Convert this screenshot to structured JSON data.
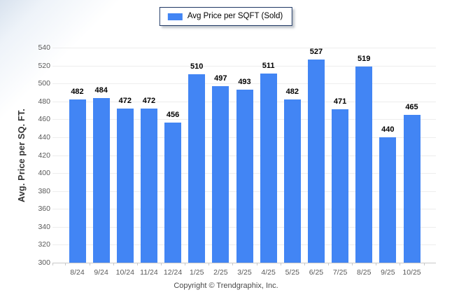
{
  "legend": {
    "label": "Avg Price per SQFT (Sold)"
  },
  "footer": {
    "copyright": "Copyright © Trendgraphix, Inc."
  },
  "colors": {
    "bar": "#4285F4",
    "legend_border": "#1F3864",
    "grid": "#ededed",
    "axis": "#c9c9c9",
    "tick_text": "#595959",
    "value_text": "#000000",
    "ylabel_text": "#333333",
    "footer_text": "#4a4a4a",
    "bg_corner": "#d8e2ee"
  },
  "chart_data": {
    "type": "bar",
    "title": "",
    "xlabel": "",
    "ylabel": "Avg. Price per SQ. FT.",
    "series": [
      {
        "name": "Avg Price per SQFT (Sold)",
        "values": [
          482,
          484,
          472,
          472,
          456,
          510,
          497,
          493,
          511,
          482,
          527,
          471,
          519,
          440,
          465
        ]
      }
    ],
    "categories": [
      "8/24",
      "9/24",
      "10/24",
      "11/24",
      "12/24",
      "1/25",
      "2/25",
      "3/25",
      "4/25",
      "5/25",
      "6/25",
      "7/25",
      "8/25",
      "9/25",
      "10/25"
    ],
    "ylim": [
      300,
      540
    ],
    "yticks": [
      300,
      320,
      340,
      360,
      380,
      400,
      420,
      440,
      460,
      480,
      500,
      520,
      540
    ],
    "grid": "horizontal",
    "legend_position": "top-center",
    "value_labels": true
  }
}
